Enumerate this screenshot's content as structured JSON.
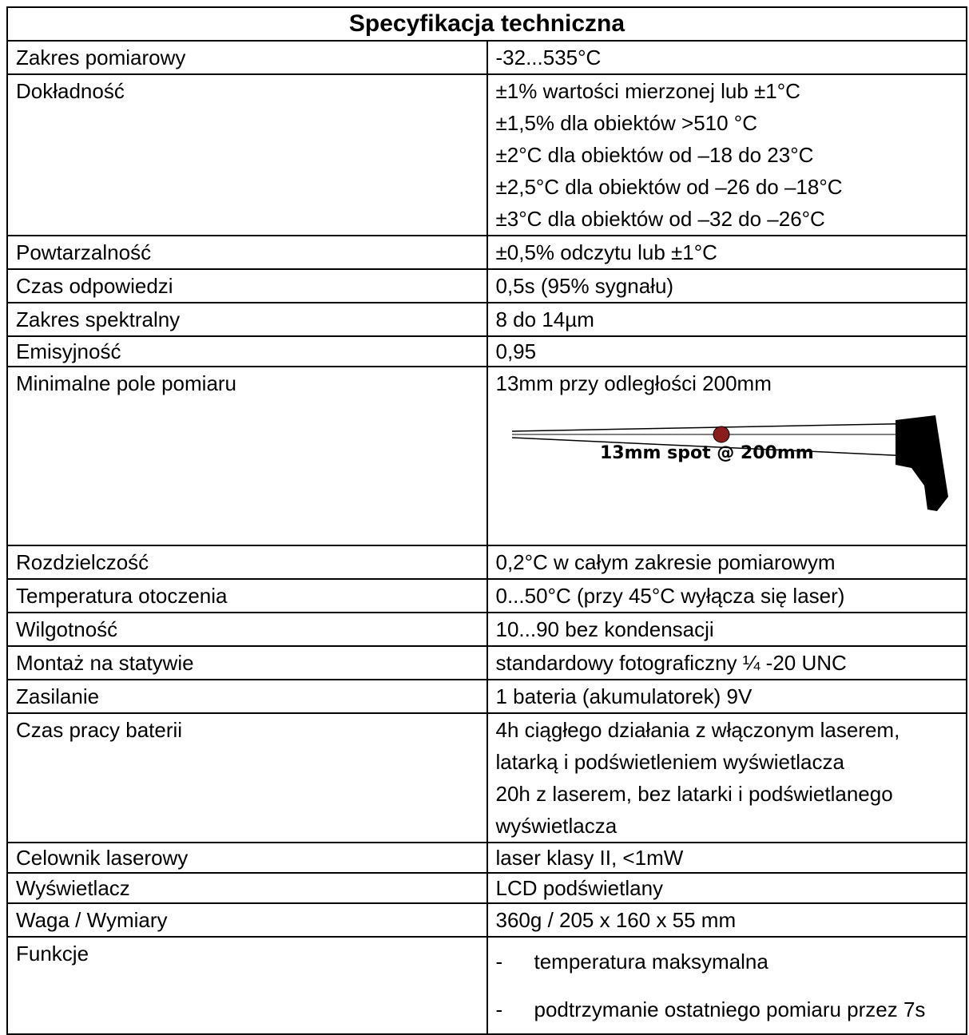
{
  "table": {
    "title": "Specyfikacja techniczna",
    "rows": [
      {
        "label": "Zakres pomiarowy",
        "values": [
          "-32...535°C"
        ]
      },
      {
        "label": "Dokładność",
        "values": [
          "±1% wartości mierzonej lub ±1°C",
          "±1,5% dla obiektów >510 °C",
          "±2°C dla obiektów od –18 do 23°C",
          "±2,5°C dla obiektów od –26 do –18°C",
          "±3°C dla obiektów od –32 do –26°C"
        ]
      },
      {
        "label": "Powtarzalność",
        "values": [
          "±0,5% odczytu lub ±1°C"
        ]
      },
      {
        "label": "Czas odpowiedzi",
        "values": [
          "0,5s (95% sygnału)"
        ]
      },
      {
        "label": "Zakres spektralny",
        "values": [
          "8 do 14µm"
        ]
      },
      {
        "label": "Emisyjność",
        "values": [
          "0,95"
        ]
      },
      {
        "label": "Minimalne pole pomiaru",
        "values": [
          "13mm przy odległości 200mm"
        ],
        "image_caption": "13mm spot @ 200mm"
      },
      {
        "label": "Rozdzielczość",
        "values": [
          "0,2°C w całym zakresie pomiarowym"
        ]
      },
      {
        "label": "Temperatura otoczenia",
        "values": [
          "0...50°C (przy 45°C wyłącza się laser)"
        ]
      },
      {
        "label": "Wilgotność",
        "values": [
          "10...90 bez kondensacji"
        ]
      },
      {
        "label": "Montaż na statywie",
        "values": [
          "standardowy fotograficzny ¼ -20 UNC"
        ]
      },
      {
        "label": "Zasilanie",
        "values": [
          "1 bateria (akumulatorek) 9V"
        ]
      },
      {
        "label": "Czas pracy baterii",
        "values": [
          "4h ciągłego działania z włączonym laserem,",
          "latarką i podświetleniem wyświetlacza",
          "20h z laserem, bez latarki i podświetlanego",
          "wyświetlacza"
        ]
      },
      {
        "label": "Celownik laserowy",
        "values": [
          "laser klasy II, <1mW"
        ]
      },
      {
        "label": "Wyświetlacz",
        "values": [
          "LCD podświetlany"
        ]
      },
      {
        "label": "Waga / Wymiary",
        "values": [
          "360g / 205 x 160 x 55 mm"
        ]
      },
      {
        "label": "Funkcje",
        "items": [
          "temperatura maksymalna",
          "podtrzymanie ostatniego pomiaru przez 7s"
        ]
      }
    ]
  }
}
